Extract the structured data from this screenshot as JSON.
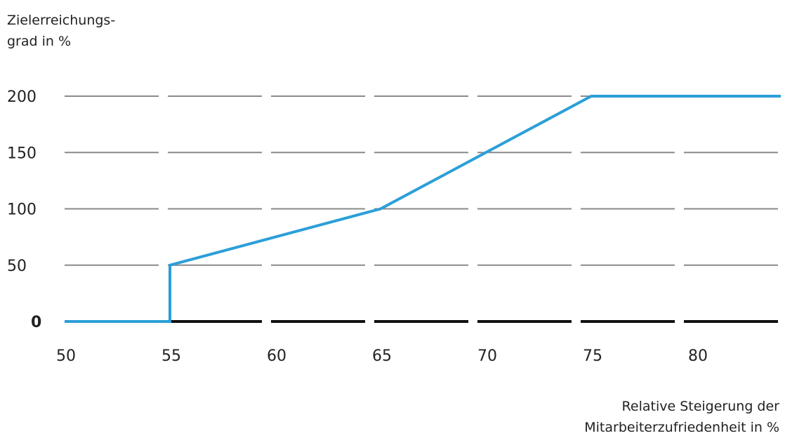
{
  "chart_data": {
    "type": "line",
    "ylabel_lines": [
      "Zielerreichungs-",
      "grad in %"
    ],
    "xlabel_lines": [
      "Relative Steigerung der",
      "Mitarbeiterzufriedenheit  in %"
    ],
    "x_ticks": [
      50,
      55,
      60,
      65,
      70,
      75,
      80
    ],
    "y_ticks": [
      0,
      50,
      100,
      150,
      200
    ],
    "xlim": [
      50,
      84
    ],
    "ylim": [
      0,
      200
    ],
    "grid": "horizontal dashed",
    "series": [
      {
        "color": "#2b9fd8",
        "x": [
          50,
          55,
          55,
          65,
          75,
          84
        ],
        "y": [
          0,
          0,
          50,
          100,
          200,
          200
        ]
      }
    ]
  }
}
